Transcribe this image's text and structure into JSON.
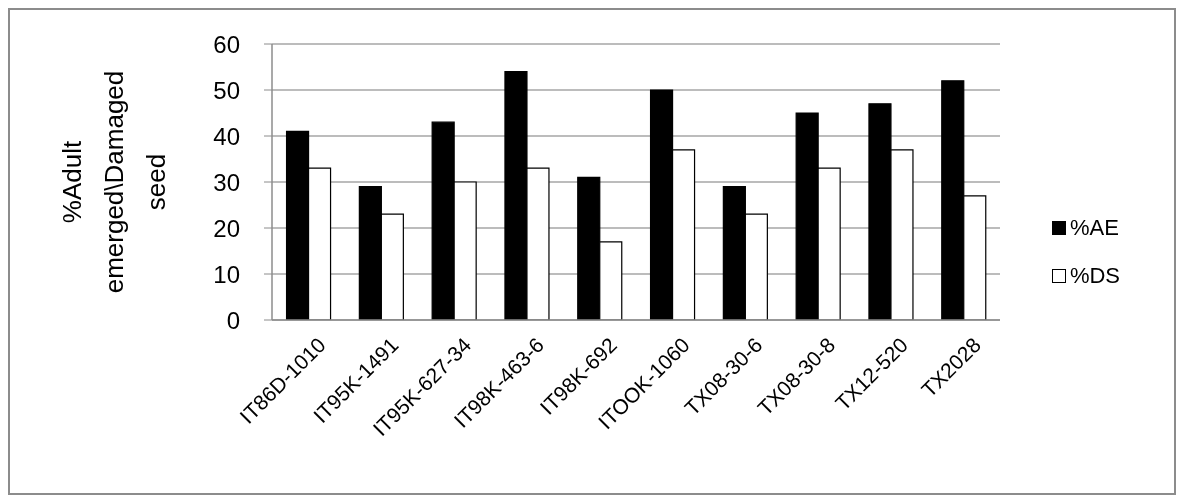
{
  "chart_data": {
    "type": "bar",
    "ylabel": "%Adult emerged\\Damaged seed",
    "categories": [
      "IT86D-1010",
      "IT95K-1491",
      "IT95K-627-34",
      "IT98K-463-6",
      "IT98K-692",
      "ITOOK-1060",
      "TX08-30-6",
      "TX08-30-8",
      "TX12-520",
      "TX2028"
    ],
    "series": [
      {
        "name": "%AE",
        "color": "#000000",
        "values": [
          41,
          29,
          43,
          54,
          31,
          50,
          29,
          45,
          47,
          52
        ]
      },
      {
        "name": "%DS",
        "color": "#ffffff",
        "values": [
          33,
          23,
          30,
          33,
          17,
          37,
          23,
          33,
          37,
          27
        ]
      }
    ],
    "ylim": [
      0,
      60
    ],
    "yticks": [
      0,
      10,
      20,
      30,
      40,
      50,
      60
    ],
    "grid": "y",
    "legend": "right"
  }
}
